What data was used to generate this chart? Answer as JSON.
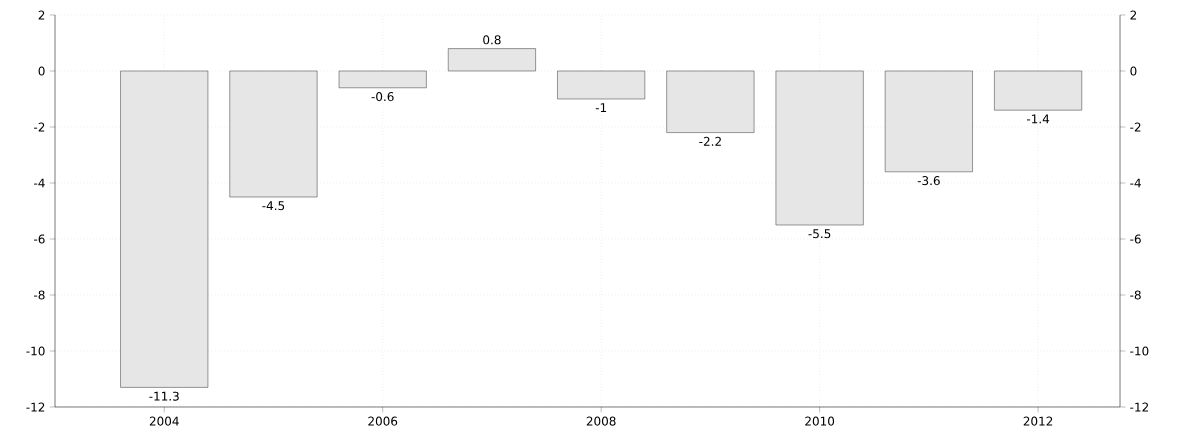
{
  "chart_data": {
    "type": "bar",
    "x": [
      2004,
      2005,
      2006,
      2007,
      2008,
      2009,
      2010,
      2011,
      2012
    ],
    "values": [
      -11.3,
      -4.5,
      -0.6,
      0.8,
      -1,
      -2.2,
      -5.5,
      -3.6,
      -1.4
    ],
    "color": "#e6e6e6",
    "data_labels": true,
    "xlim": [
      2003,
      2012.75
    ],
    "xticks": [
      2004,
      2006,
      2008,
      2010,
      2012
    ],
    "ylim": [
      -12,
      2
    ],
    "yticks": [
      -12,
      -10,
      -8,
      -6,
      -4,
      -2,
      0,
      2
    ],
    "y2lim": [
      -12,
      2
    ],
    "y2ticks": [
      -12,
      -10,
      -8,
      -6,
      -4,
      -2,
      0,
      2
    ],
    "grid": true
  }
}
